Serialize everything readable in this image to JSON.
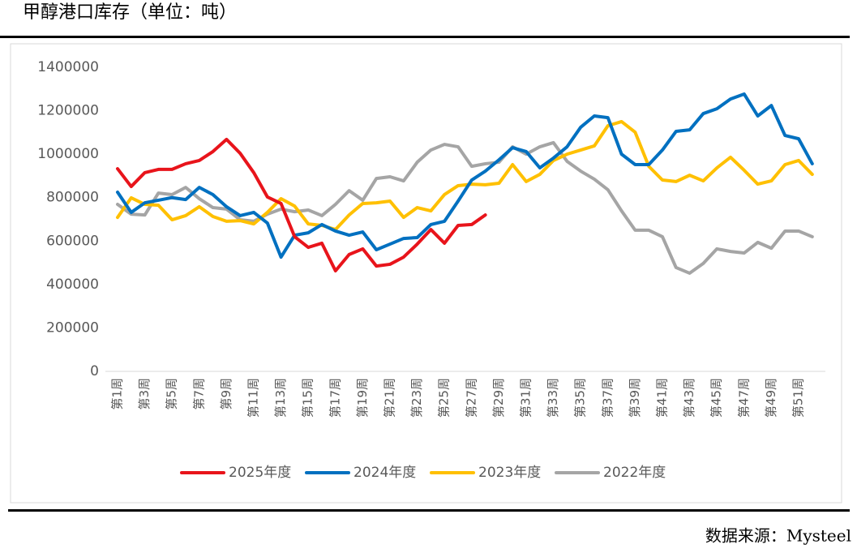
{
  "chart_data": {
    "type": "line",
    "title": "甲醇港口库存（单位：吨）",
    "source": "数据来源：Mysteel",
    "categories": [
      "第1周",
      null,
      "第3周",
      null,
      "第5周",
      null,
      "第7周",
      null,
      "第9周",
      null,
      "第11周",
      null,
      "第13周",
      null,
      "第15周",
      null,
      "第17周",
      null,
      "第19周",
      null,
      "第21周",
      null,
      "第23周",
      null,
      "第25周",
      null,
      "第27周",
      null,
      "第29周",
      null,
      "第31周",
      null,
      "第33周",
      null,
      "第35周",
      null,
      "第37周",
      null,
      "第39周",
      null,
      "第41周",
      null,
      "第43周",
      null,
      "第45周",
      null,
      "第47周",
      null,
      "第49周",
      null,
      "第51周",
      null
    ],
    "ylim": [
      0,
      1400000
    ],
    "yticks": [
      0,
      200000,
      400000,
      600000,
      800000,
      1000000,
      1200000,
      1400000
    ],
    "grid": false,
    "legend": "bottom",
    "series": [
      {
        "name": "2025年度",
        "color": "#e8141b",
        "values": [
          933000,
          851000,
          915000,
          930000,
          930000,
          956000,
          971000,
          1012000,
          1068000,
          1004000,
          915000,
          803000,
          773000,
          620000,
          571000,
          590000,
          463000,
          538000,
          564000,
          485000,
          493000,
          526000,
          586000,
          653000,
          590000,
          672000,
          676000,
          720000,
          null,
          null,
          null,
          null,
          null,
          null,
          null,
          null,
          null,
          null,
          null,
          null,
          null,
          null,
          null,
          null,
          null,
          null,
          null,
          null,
          null,
          null,
          null,
          null
        ]
      },
      {
        "name": "2024年度",
        "color": "#0070c0",
        "values": [
          825000,
          732000,
          776000,
          788000,
          800000,
          791000,
          847000,
          814000,
          758000,
          717000,
          732000,
          683000,
          526000,
          627000,
          638000,
          676000,
          646000,
          627000,
          642000,
          560000,
          586000,
          612000,
          616000,
          676000,
          691000,
          784000,
          881000,
          922000,
          974000,
          1030000,
          1012000,
          937000,
          982000,
          1034000,
          1124000,
          1176000,
          1168000,
          1000000,
          952000,
          952000,
          1019000,
          1105000,
          1112000,
          1187000,
          1209000,
          1254000,
          1277000,
          1176000,
          1224000,
          1086000,
          1071000,
          956000
        ]
      },
      {
        "name": "2023年度",
        "color": "#ffc000",
        "values": [
          709000,
          799000,
          769000,
          765000,
          698000,
          717000,
          758000,
          713000,
          691000,
          694000,
          679000,
          732000,
          795000,
          761000,
          679000,
          672000,
          653000,
          720000,
          773000,
          776000,
          784000,
          709000,
          754000,
          739000,
          814000,
          855000,
          862000,
          859000,
          866000,
          952000,
          874000,
          907000,
          971000,
          1000000,
          1019000,
          1038000,
          1131000,
          1150000,
          1101000,
          944000,
          881000,
          874000,
          903000,
          877000,
          937000,
          986000,
          926000,
          862000,
          877000,
          952000,
          971000,
          907000
        ]
      },
      {
        "name": "2022年度",
        "color": "#a5a5a5",
        "values": [
          769000,
          724000,
          720000,
          821000,
          814000,
          847000,
          795000,
          754000,
          747000,
          698000,
          691000,
          724000,
          747000,
          735000,
          743000,
          717000,
          769000,
          832000,
          788000,
          888000,
          896000,
          877000,
          963000,
          1019000,
          1045000,
          1034000,
          944000,
          956000,
          963000,
          1034000,
          1000000,
          1034000,
          1053000,
          967000,
          922000,
          885000,
          836000,
          739000,
          650000,
          650000,
          620000,
          478000,
          452000,
          497000,
          564000,
          552000,
          545000,
          594000,
          567000,
          646000,
          646000,
          620000
        ]
      }
    ]
  }
}
